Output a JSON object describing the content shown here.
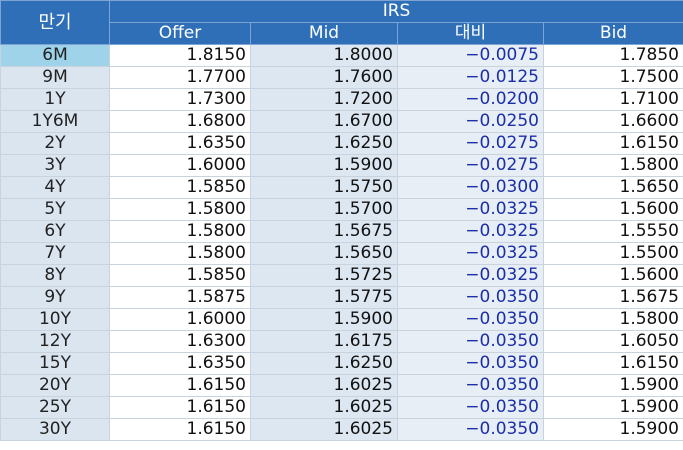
{
  "table": {
    "header": {
      "maturity": "만기",
      "group": "IRS",
      "columns": [
        "Offer",
        "Mid",
        "대비",
        "Bid"
      ]
    },
    "rows": [
      [
        "6M",
        "1.8150",
        "1.8000",
        "−0.0075",
        "1.7850"
      ],
      [
        "9M",
        "1.7700",
        "1.7600",
        "−0.0125",
        "1.7500"
      ],
      [
        "1Y",
        "1.7300",
        "1.7200",
        "−0.0200",
        "1.7100"
      ],
      [
        "1Y6M",
        "1.6800",
        "1.6700",
        "−0.0250",
        "1.6600"
      ],
      [
        "2Y",
        "1.6350",
        "1.6250",
        "−0.0275",
        "1.6150"
      ],
      [
        "3Y",
        "1.6000",
        "1.5900",
        "−0.0275",
        "1.5800"
      ],
      [
        "4Y",
        "1.5850",
        "1.5750",
        "−0.0300",
        "1.5650"
      ],
      [
        "5Y",
        "1.5800",
        "1.5700",
        "−0.0325",
        "1.5600"
      ],
      [
        "6Y",
        "1.5800",
        "1.5675",
        "−0.0325",
        "1.5550"
      ],
      [
        "7Y",
        "1.5800",
        "1.5650",
        "−0.0325",
        "1.5500"
      ],
      [
        "8Y",
        "1.5850",
        "1.5725",
        "−0.0325",
        "1.5600"
      ],
      [
        "9Y",
        "1.5875",
        "1.5775",
        "−0.0350",
        "1.5675"
      ],
      [
        "10Y",
        "1.6000",
        "1.5900",
        "−0.0350",
        "1.5800"
      ],
      [
        "12Y",
        "1.6300",
        "1.6175",
        "−0.0350",
        "1.6050"
      ],
      [
        "15Y",
        "1.6350",
        "1.6250",
        "−0.0350",
        "1.6150"
      ],
      [
        "20Y",
        "1.6150",
        "1.6025",
        "−0.0350",
        "1.5900"
      ],
      [
        "25Y",
        "1.6150",
        "1.6025",
        "−0.0350",
        "1.5900"
      ],
      [
        "30Y",
        "1.6150",
        "1.6025",
        "−0.0350",
        "1.5900"
      ]
    ]
  }
}
